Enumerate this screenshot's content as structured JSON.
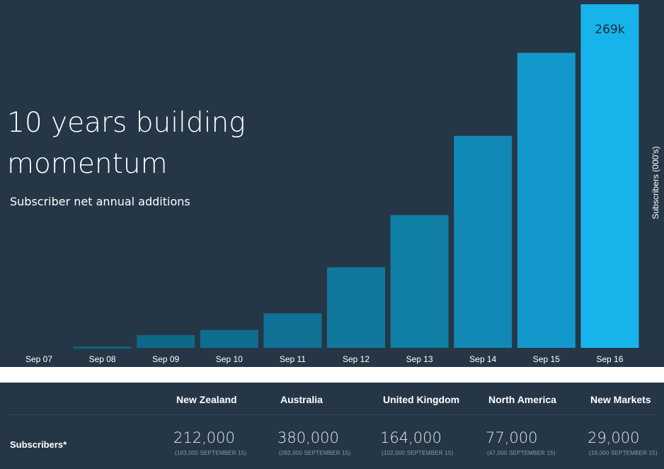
{
  "header": {
    "title": "10 years building momentum",
    "subtitle": "Subscriber net annual additions",
    "ylabel": "Subscribers (000's)",
    "highlight_label": "269k"
  },
  "chart_data": {
    "type": "bar",
    "title": "10 years building momentum",
    "subtitle": "Subscriber net annual additions",
    "xlabel": "",
    "ylabel": "Subscribers (000's)",
    "categories": [
      "Sep 07",
      "Sep 08",
      "Sep 09",
      "Sep 10",
      "Sep 11",
      "Sep 12",
      "Sep 13",
      "Sep 14",
      "Sep 15",
      "Sep 16"
    ],
    "values": [
      0,
      1,
      10,
      14,
      27,
      63,
      104,
      166,
      231,
      269
    ],
    "ylim": [
      0,
      269
    ],
    "data_labels": [
      "",
      "",
      "",
      "",
      "",
      "",
      "",
      "",
      "",
      "269k"
    ],
    "colors": [
      "#0e5f7e",
      "#0e6383",
      "#0e6889",
      "#0f6d8f",
      "#0f7296",
      "#10789d",
      "#107fa6",
      "#1189b4",
      "#1398cb",
      "#17b4eb"
    ],
    "grid": false,
    "legend": "none"
  },
  "table": {
    "columns": [
      "New Zealand",
      "Australia",
      "United Kingdom",
      "North America",
      "New Markets"
    ],
    "row_label": "Subscribers*",
    "values": [
      "212,000",
      "380,000",
      "164,000",
      "77,000",
      "29,000"
    ],
    "notes": [
      "(163,000 SEPTEMBER 15)",
      "(282,000 SEPTEMBER 15)",
      "(102,000 SEPTEMBER 15)",
      "(47,000 SEPTEMBER 15)",
      "(19,000 SEPTEMBER 15)"
    ]
  }
}
